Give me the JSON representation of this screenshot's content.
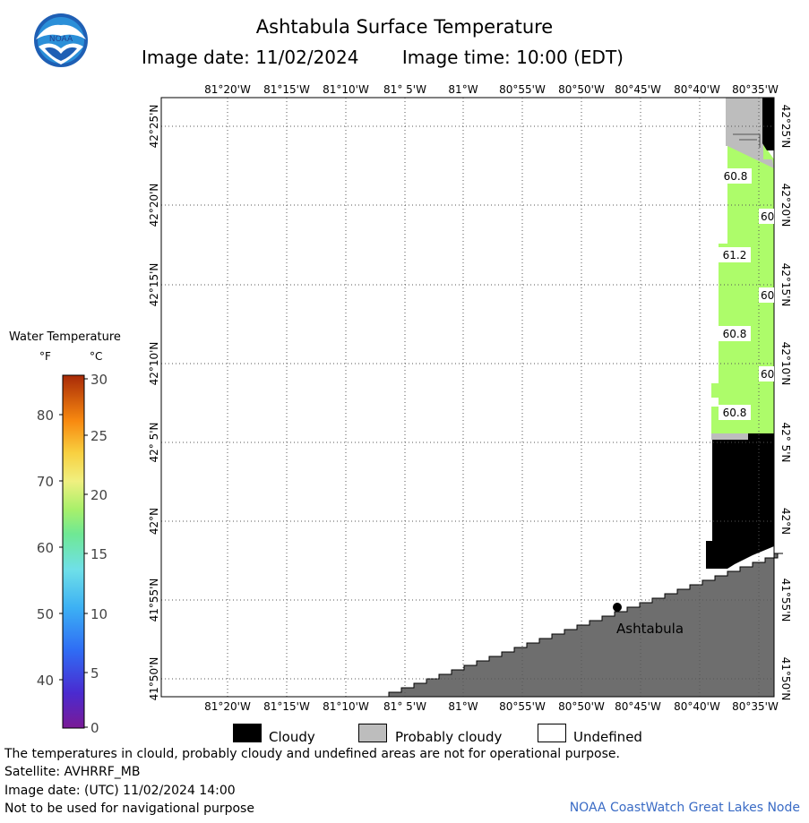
{
  "header": {
    "title": "Ashtabula Surface Temperature",
    "image_date": "Image date: 11/02/2024",
    "image_time": "Image time: 10:00 (EDT)"
  },
  "logo": {
    "text": "NOAA"
  },
  "map": {
    "longitude_labels": [
      "81°20'W",
      "81°15'W",
      "81°10'W",
      "81° 5'W",
      "81°W",
      "80°55'W",
      "80°50'W",
      "80°45'W",
      "80°40'W",
      "80°35'W"
    ],
    "latitude_labels": [
      "42°25'N",
      "42°20'N",
      "42°15'N",
      "42°10'N",
      "42° 5'N",
      "42°N",
      "41°55'N",
      "41°50'N"
    ],
    "temperature_labels": [
      "60.8",
      "60",
      "61.2",
      "60",
      "60.8",
      "60",
      "60.8"
    ],
    "city": "Ashtabula",
    "colors": {
      "water": "#adfc6a",
      "cloud": "#000000",
      "probably_cloudy": "#bdbdbd",
      "land": "#6e6e6e"
    }
  },
  "scale": {
    "title": "Water Temperature",
    "unit_f": "°F",
    "unit_c": "°C",
    "f_ticks": [
      "80",
      "70",
      "60",
      "50",
      "40"
    ],
    "c_ticks": [
      "30",
      "25",
      "20",
      "15",
      "10",
      "5",
      "0"
    ]
  },
  "legend": {
    "cloudy": "Cloudy",
    "probably_cloudy": "Probably cloudy",
    "undefined": "Undefined"
  },
  "footer": {
    "disclaimer": "The temperatures in clould, probably cloudy and undefined areas are not for operational purpose.",
    "satellite": "Satellite: AVHRRF_MB",
    "utc_date": "Image date: (UTC) 11/02/2024  14:00",
    "navigation": "Not to be used for navigational purpose",
    "credit": "NOAA CoastWatch Great Lakes Node"
  }
}
